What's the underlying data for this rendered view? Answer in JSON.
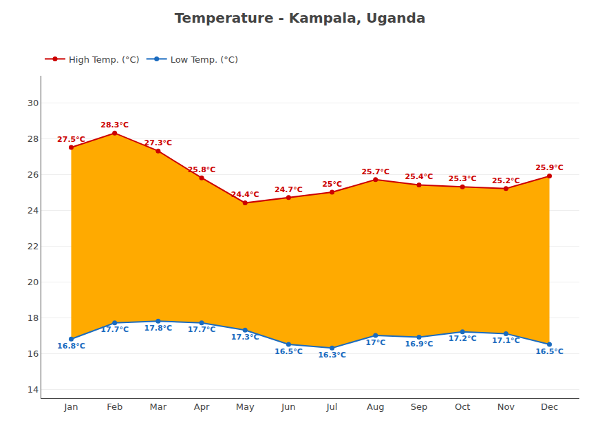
{
  "chart_data": {
    "type": "line",
    "title": "Temperature - Kampala, Uganda",
    "categories": [
      "Jan",
      "Feb",
      "Mar",
      "Apr",
      "May",
      "Jun",
      "Jul",
      "Aug",
      "Sep",
      "Oct",
      "Nov",
      "Dec"
    ],
    "series": [
      {
        "name": "Low Temp. (°C)",
        "color": "#1a6bbf",
        "marker": "circle",
        "values": [
          16.8,
          17.7,
          17.8,
          17.7,
          17.3,
          16.5,
          16.3,
          17.0,
          16.9,
          17.2,
          17.1,
          16.5
        ],
        "value_labels": [
          "16.8°C",
          "17.7°C",
          "17.8°C",
          "17.7°C",
          "17.3°C",
          "16.5°C",
          "16.3°C",
          "17°C",
          "16.9°C",
          "17.2°C",
          "17.1°C",
          "16.5°C"
        ]
      },
      {
        "name": "High Temp. (°C)",
        "color": "#cc0000",
        "marker": "circle",
        "values": [
          27.5,
          28.3,
          27.3,
          25.8,
          24.4,
          24.7,
          25.0,
          25.7,
          25.4,
          25.3,
          25.2,
          25.9
        ],
        "value_labels": [
          "27.5°C",
          "28.3°C",
          "27.3°C",
          "25.8°C",
          "24.4°C",
          "24.7°C",
          "25°C",
          "25.7°C",
          "25.4°C",
          "25.3°C",
          "25.2°C",
          "25.9°C"
        ]
      }
    ],
    "color": "#ffaa00",
    "ylim": [
      13.5,
      31.5
    ],
    "yticks": [
      14,
      16,
      18,
      20,
      22,
      24,
      26,
      28,
      30
    ],
    "grid": true,
    "legend": "upper left",
    "data_labels": true
  }
}
